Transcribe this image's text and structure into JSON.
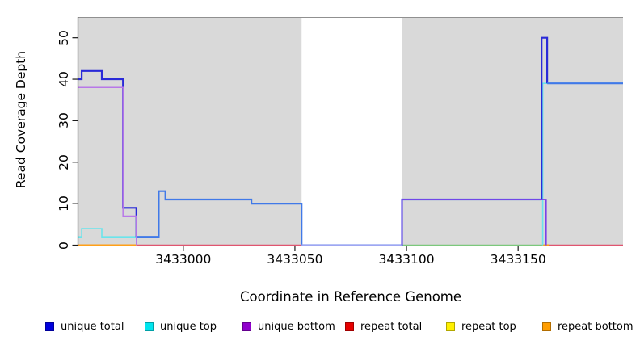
{
  "chart_data": {
    "type": "line",
    "subtype": "step-coverage-plot",
    "title": "",
    "xlabel": "Coordinate in Reference Genome",
    "ylabel": "Read Coverage Depth",
    "x_ticks": [
      3433000,
      3433050,
      3433100,
      3433150
    ],
    "y_ticks": [
      0,
      10,
      20,
      30,
      40,
      50
    ],
    "x_range": [
      3432953,
      3433197
    ],
    "y_range": [
      0,
      55
    ],
    "grid": "off",
    "panel_background": "#d9d9d9",
    "gap_region": {
      "start": 3433053,
      "end": 3433098,
      "fill": "#ffffff"
    },
    "series": [
      {
        "name": "unique total",
        "color": "#0000dd",
        "steps": [
          [
            3432953,
            40
          ],
          [
            3432954.5,
            42
          ],
          [
            3432963.5,
            40
          ],
          [
            3432973,
            9
          ],
          [
            3432979,
            2
          ],
          [
            3432989,
            13
          ],
          [
            3432992,
            11
          ],
          [
            3433030.5,
            10
          ],
          [
            3433053,
            0
          ],
          [
            3433098,
            11
          ],
          [
            3433160.5,
            50
          ],
          [
            3433163,
            39
          ],
          [
            3433197,
            39
          ]
        ]
      },
      {
        "name": "unique top",
        "color": "#00e5ee",
        "steps": [
          [
            3432953,
            2
          ],
          [
            3432954.5,
            4
          ],
          [
            3432963.5,
            2
          ],
          [
            3432979,
            0
          ],
          [
            3433161,
            39
          ],
          [
            3433197,
            39
          ]
        ]
      },
      {
        "name": "unique bottom",
        "color": "#9000cc",
        "steps": [
          [
            3432953,
            38
          ],
          [
            3432973,
            7
          ],
          [
            3432979,
            0
          ],
          [
            3433098,
            11
          ],
          [
            3433162.5,
            0
          ],
          [
            3433197,
            0
          ]
        ]
      },
      {
        "name": "repeat total",
        "color": "#e60000",
        "steps": [
          [
            3432953,
            0
          ],
          [
            3433197,
            0
          ]
        ]
      },
      {
        "name": "repeat top",
        "color": "#fff000",
        "steps": [
          [
            3432953,
            0
          ],
          [
            3433197,
            0
          ]
        ]
      },
      {
        "name": "repeat bottom",
        "color": "#ff9d00",
        "steps": [
          [
            3432953,
            0
          ],
          [
            3433197,
            0
          ]
        ]
      }
    ],
    "render_polylines": [
      {
        "name": "repeat-total-line-left",
        "color": "#e05570",
        "width": 1.6,
        "points": [
          [
            3432979,
            0
          ],
          [
            3433053,
            0
          ]
        ]
      },
      {
        "name": "repeat-total-line-right",
        "color": "#e05570",
        "width": 1.6,
        "points": [
          [
            3433164,
            0
          ],
          [
            3433197,
            0
          ]
        ]
      },
      {
        "name": "unique-repeat-overlap-line",
        "color": "#7cc87c",
        "width": 1.5,
        "points": [
          [
            3433098,
            0
          ],
          [
            3433161,
            0
          ]
        ]
      },
      {
        "name": "repeat-bottom-line-left",
        "color": "#ffa018",
        "width": 2.0,
        "points": [
          [
            3432953,
            0
          ],
          [
            3432979,
            0
          ]
        ]
      },
      {
        "name": "repeat-bottom-line-right",
        "color": "#ffa018",
        "width": 2.0,
        "points": [
          [
            3433161,
            0
          ],
          [
            3433164,
            0
          ]
        ]
      },
      {
        "name": "unique-top-line-left",
        "color": "#6ae4ec",
        "width": 1.6,
        "points": [
          [
            3432953,
            2
          ],
          [
            3432954.5,
            2
          ],
          [
            3432954.5,
            4
          ],
          [
            3432963.5,
            4
          ],
          [
            3432963.5,
            2
          ],
          [
            3432979,
            2
          ],
          [
            3432979,
            0
          ]
        ]
      },
      {
        "name": "unique-top-line-right",
        "color": "#6ae4ec",
        "width": 1.6,
        "points": [
          [
            3433161,
            0
          ],
          [
            3433161,
            39
          ],
          [
            3433197,
            39
          ]
        ]
      },
      {
        "name": "unique-total-line-a",
        "color": "#2a2ad8",
        "width": 2.2,
        "points": [
          [
            3432953,
            40
          ],
          [
            3432954.5,
            40
          ],
          [
            3432954.5,
            42
          ],
          [
            3432963.5,
            42
          ],
          [
            3432963.5,
            40
          ],
          [
            3432973,
            40
          ],
          [
            3432973,
            9
          ],
          [
            3432979,
            9
          ],
          [
            3432979,
            2
          ]
        ]
      },
      {
        "name": "unique-total-line-b",
        "color": "#4079e8",
        "width": 2.2,
        "points": [
          [
            3432979,
            2
          ],
          [
            3432989,
            2
          ],
          [
            3432989,
            13
          ],
          [
            3432992,
            13
          ],
          [
            3432992,
            11
          ],
          [
            3433030.5,
            11
          ],
          [
            3433030.5,
            10
          ],
          [
            3433053,
            10
          ],
          [
            3433053,
            0
          ],
          [
            3433098,
            0
          ],
          [
            3433098,
            11
          ],
          [
            3433160.5,
            11
          ]
        ]
      },
      {
        "name": "unique-total-line-c",
        "color": "#2a2ad8",
        "width": 2.2,
        "points": [
          [
            3433160.5,
            11
          ],
          [
            3433160.5,
            50
          ],
          [
            3433163,
            50
          ],
          [
            3433163,
            39
          ]
        ]
      },
      {
        "name": "unique-total-line-d",
        "color": "#4079e8",
        "width": 2.2,
        "points": [
          [
            3433163,
            39
          ],
          [
            3433197,
            39
          ]
        ]
      },
      {
        "name": "unique-gap-baseline",
        "color": "#9fa6f2",
        "width": 2.0,
        "points": [
          [
            3433053,
            0
          ],
          [
            3433098,
            0
          ]
        ]
      },
      {
        "name": "unique-bottom-line-left",
        "color": "#b878e8",
        "width": 1.5,
        "points": [
          [
            3432953,
            38
          ],
          [
            3432973,
            38
          ],
          [
            3432973,
            7
          ],
          [
            3432979,
            7
          ],
          [
            3432979,
            0
          ]
        ]
      },
      {
        "name": "unique-bottom-line-right",
        "color": "#7a40e8",
        "width": 1.8,
        "points": [
          [
            3433098,
            0
          ],
          [
            3433098,
            11
          ],
          [
            3433162.5,
            11
          ],
          [
            3433162.5,
            0
          ]
        ]
      }
    ],
    "legend_position": "bottom"
  },
  "legend": {
    "items": [
      {
        "label": "unique total",
        "color": "#0000dd"
      },
      {
        "label": "unique top",
        "color": "#00e5ee"
      },
      {
        "label": "unique bottom",
        "color": "#9000cc"
      },
      {
        "label": "repeat total",
        "color": "#e60000"
      },
      {
        "label": "repeat top",
        "color": "#fff000"
      },
      {
        "label": "repeat bottom",
        "color": "#ff9d00"
      }
    ]
  }
}
